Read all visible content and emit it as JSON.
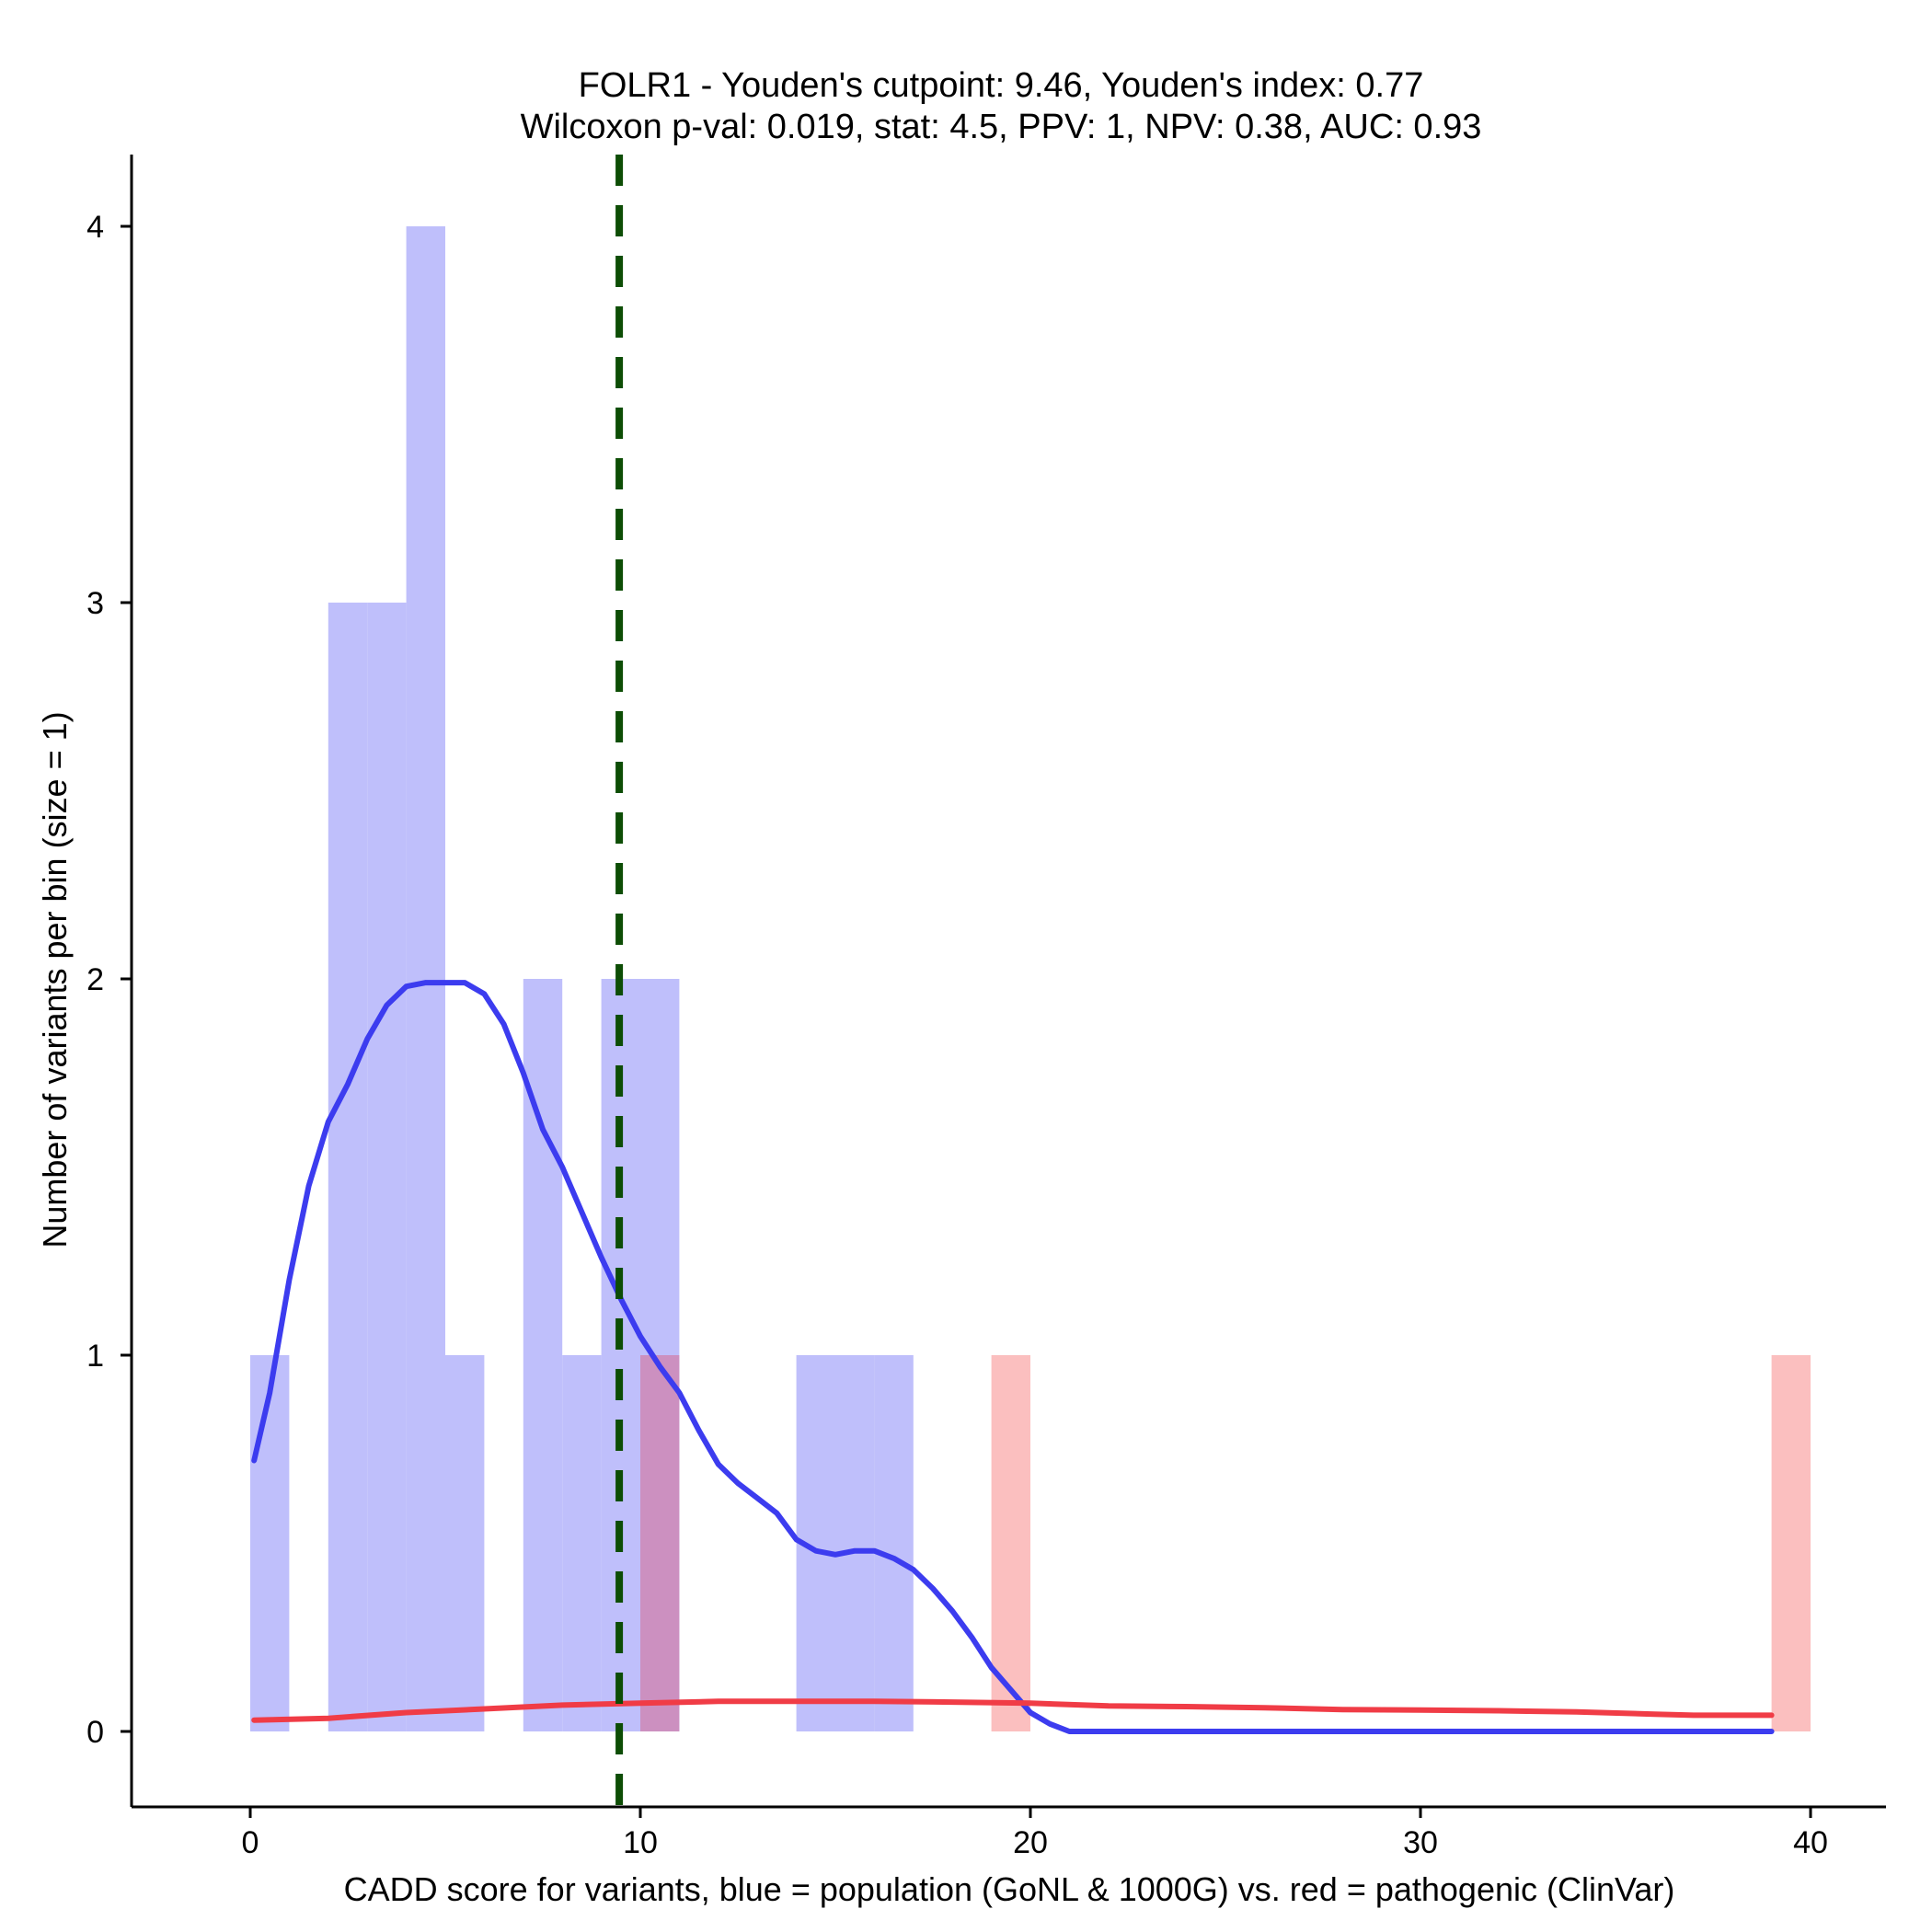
{
  "chart_data": {
    "type": "bar",
    "title": "FOLR1 - Youden's cutpoint: 9.46, Youden's index: 0.77",
    "subtitle": "Wilcoxon p-val: 0.019, stat: 4.5, PPV: 1, NPV: 0.38, AUC: 0.93",
    "xlabel": "CADD score for variants, blue = population (GoNL & 1000G) vs. red = pathogenic (ClinVar)",
    "ylabel": "Number of variants per bin (size = 1)",
    "xlim": [
      -3,
      42
    ],
    "ylim": [
      -0.2,
      4.2
    ],
    "x_ticks": [
      0,
      10,
      20,
      30,
      40
    ],
    "y_ticks": [
      0,
      1,
      2,
      3,
      4
    ],
    "bin_size": 1,
    "cutpoint": 9.46,
    "series": [
      {
        "name": "population (GoNL & 1000G)",
        "color": "#bfbffb",
        "bins": [
          {
            "x": 0,
            "count": 1
          },
          {
            "x": 2,
            "count": 3
          },
          {
            "x": 3,
            "count": 3
          },
          {
            "x": 4,
            "count": 4
          },
          {
            "x": 5,
            "count": 1
          },
          {
            "x": 7,
            "count": 2
          },
          {
            "x": 8,
            "count": 1
          },
          {
            "x": 9,
            "count": 2
          },
          {
            "x": 10,
            "count": 2
          },
          {
            "x": 14,
            "count": 1
          },
          {
            "x": 15,
            "count": 1
          },
          {
            "x": 16,
            "count": 1
          }
        ]
      },
      {
        "name": "pathogenic (ClinVar)",
        "color": "#fbbfbf",
        "bins": [
          {
            "x": 10,
            "count": 1
          },
          {
            "x": 19,
            "count": 1
          },
          {
            "x": 39,
            "count": 1
          }
        ]
      }
    ],
    "overlap_color": "#cc90c0",
    "density_curves": [
      {
        "name": "population density",
        "color": "#3c3cef",
        "points": [
          [
            0.1,
            0.72
          ],
          [
            0.5,
            0.9
          ],
          [
            1,
            1.2
          ],
          [
            1.5,
            1.45
          ],
          [
            2,
            1.62
          ],
          [
            2.5,
            1.72
          ],
          [
            3,
            1.84
          ],
          [
            3.5,
            1.93
          ],
          [
            4,
            1.98
          ],
          [
            4.5,
            1.99
          ],
          [
            5,
            1.99
          ],
          [
            5.5,
            1.99
          ],
          [
            6,
            1.96
          ],
          [
            6.5,
            1.88
          ],
          [
            7,
            1.75
          ],
          [
            7.5,
            1.6
          ],
          [
            8,
            1.5
          ],
          [
            8.5,
            1.38
          ],
          [
            9,
            1.26
          ],
          [
            9.5,
            1.15
          ],
          [
            10,
            1.05
          ],
          [
            10.5,
            0.97
          ],
          [
            11,
            0.9
          ],
          [
            11.5,
            0.8
          ],
          [
            12,
            0.71
          ],
          [
            12.5,
            0.66
          ],
          [
            13,
            0.62
          ],
          [
            13.5,
            0.58
          ],
          [
            14,
            0.51
          ],
          [
            14.5,
            0.48
          ],
          [
            15,
            0.47
          ],
          [
            15.5,
            0.48
          ],
          [
            16,
            0.48
          ],
          [
            16.5,
            0.46
          ],
          [
            17,
            0.43
          ],
          [
            17.5,
            0.38
          ],
          [
            18,
            0.32
          ],
          [
            18.5,
            0.25
          ],
          [
            19,
            0.17
          ],
          [
            19.5,
            0.11
          ],
          [
            20,
            0.05
          ],
          [
            20.5,
            0.02
          ],
          [
            21,
            0.0
          ],
          [
            25,
            0.0
          ],
          [
            30,
            0.0
          ],
          [
            35,
            0.0
          ],
          [
            39,
            0.0
          ]
        ]
      },
      {
        "name": "pathogenic density",
        "color": "#f03c46",
        "points": [
          [
            0.1,
            0.03
          ],
          [
            2,
            0.035
          ],
          [
            4,
            0.05
          ],
          [
            6,
            0.06
          ],
          [
            8,
            0.07
          ],
          [
            10,
            0.075
          ],
          [
            12,
            0.08
          ],
          [
            14,
            0.08
          ],
          [
            16,
            0.08
          ],
          [
            18,
            0.078
          ],
          [
            20,
            0.075
          ],
          [
            22,
            0.068
          ],
          [
            24,
            0.066
          ],
          [
            26,
            0.063
          ],
          [
            28,
            0.058
          ],
          [
            30,
            0.057
          ],
          [
            32,
            0.055
          ],
          [
            34,
            0.052
          ],
          [
            36,
            0.046
          ],
          [
            37,
            0.043
          ],
          [
            38,
            0.043
          ],
          [
            39,
            0.043
          ]
        ]
      }
    ],
    "cutpoint_line": {
      "color": "#0d4d05",
      "style": "dashed"
    }
  }
}
